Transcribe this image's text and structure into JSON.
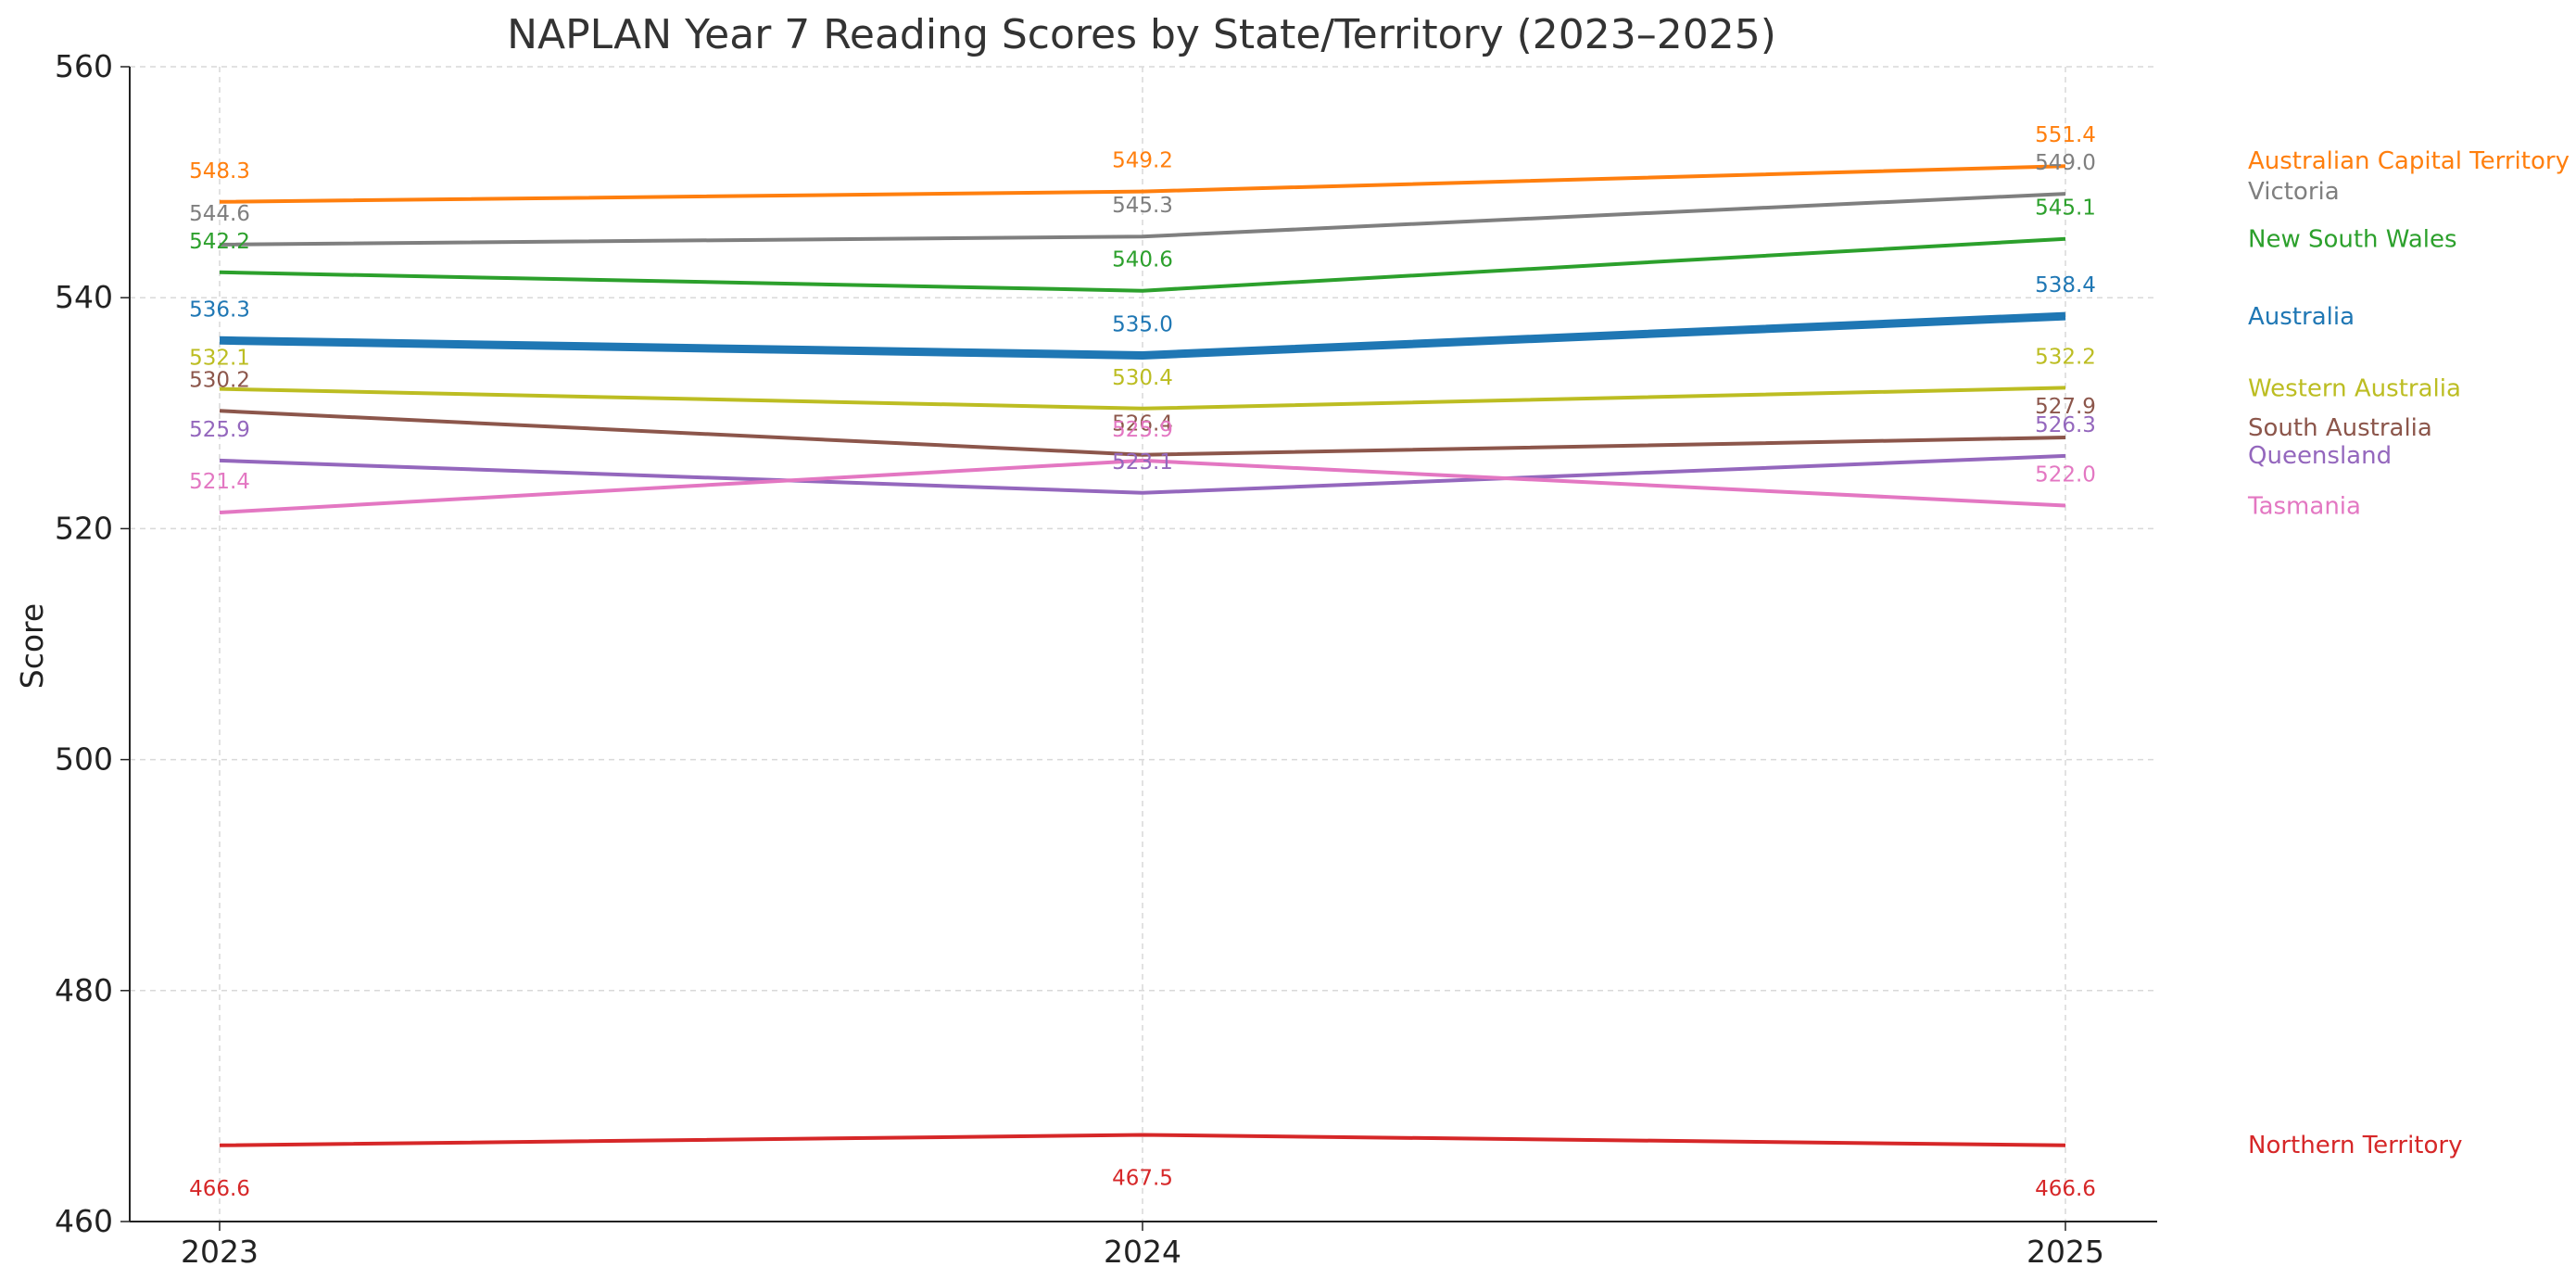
{
  "chart_data": {
    "type": "line",
    "title": "NAPLAN Year 7 Reading Scores by State/Territory (2023–2025)",
    "xlabel": "",
    "ylabel": "Score",
    "x": [
      "2023",
      "2024",
      "2025"
    ],
    "ylim": [
      460,
      560
    ],
    "yticks": [
      "460",
      "480",
      "500",
      "520",
      "540",
      "560"
    ],
    "grid": true,
    "legend": "direct labels at right",
    "series": [
      {
        "name": "Australian Capital Territory",
        "color": "#ff7f0e",
        "values": [
          548.3,
          549.2,
          551.4
        ],
        "labels": [
          "548.3",
          "549.2",
          "551.4"
        ],
        "bold": false
      },
      {
        "name": "Victoria",
        "color": "#7f7f7f",
        "values": [
          544.6,
          545.3,
          549.0
        ],
        "labels": [
          "544.6",
          "545.3",
          "549.0"
        ],
        "bold": false
      },
      {
        "name": "New South Wales",
        "color": "#2ca02c",
        "values": [
          542.2,
          540.6,
          545.1
        ],
        "labels": [
          "542.2",
          "540.6",
          "545.1"
        ],
        "bold": false
      },
      {
        "name": "Australia",
        "color": "#1f77b4",
        "values": [
          536.3,
          535.0,
          538.4
        ],
        "labels": [
          "536.3",
          "535.0",
          "538.4"
        ],
        "bold": true
      },
      {
        "name": "Western Australia",
        "color": "#bcbd22",
        "values": [
          532.1,
          530.4,
          532.2
        ],
        "labels": [
          "532.1",
          "530.4",
          "532.2"
        ],
        "bold": false
      },
      {
        "name": "South Australia",
        "color": "#8c564b",
        "values": [
          530.2,
          526.4,
          527.9
        ],
        "labels": [
          "530.2",
          "526.4",
          "527.9"
        ],
        "bold": false
      },
      {
        "name": "Queensland",
        "color": "#9467bd",
        "values": [
          525.9,
          523.1,
          526.3
        ],
        "labels": [
          "525.9",
          "523.1",
          "526.3"
        ],
        "bold": false
      },
      {
        "name": "Tasmania",
        "color": "#e377c2",
        "values": [
          521.4,
          525.9,
          522.0
        ],
        "labels": [
          "521.4",
          "525.9",
          "522.0"
        ],
        "bold": false
      },
      {
        "name": "Northern Territory",
        "color": "#d62728",
        "values": [
          466.6,
          467.5,
          466.6
        ],
        "labels": [
          "466.6",
          "467.5",
          "466.6"
        ],
        "bold": false
      }
    ]
  }
}
